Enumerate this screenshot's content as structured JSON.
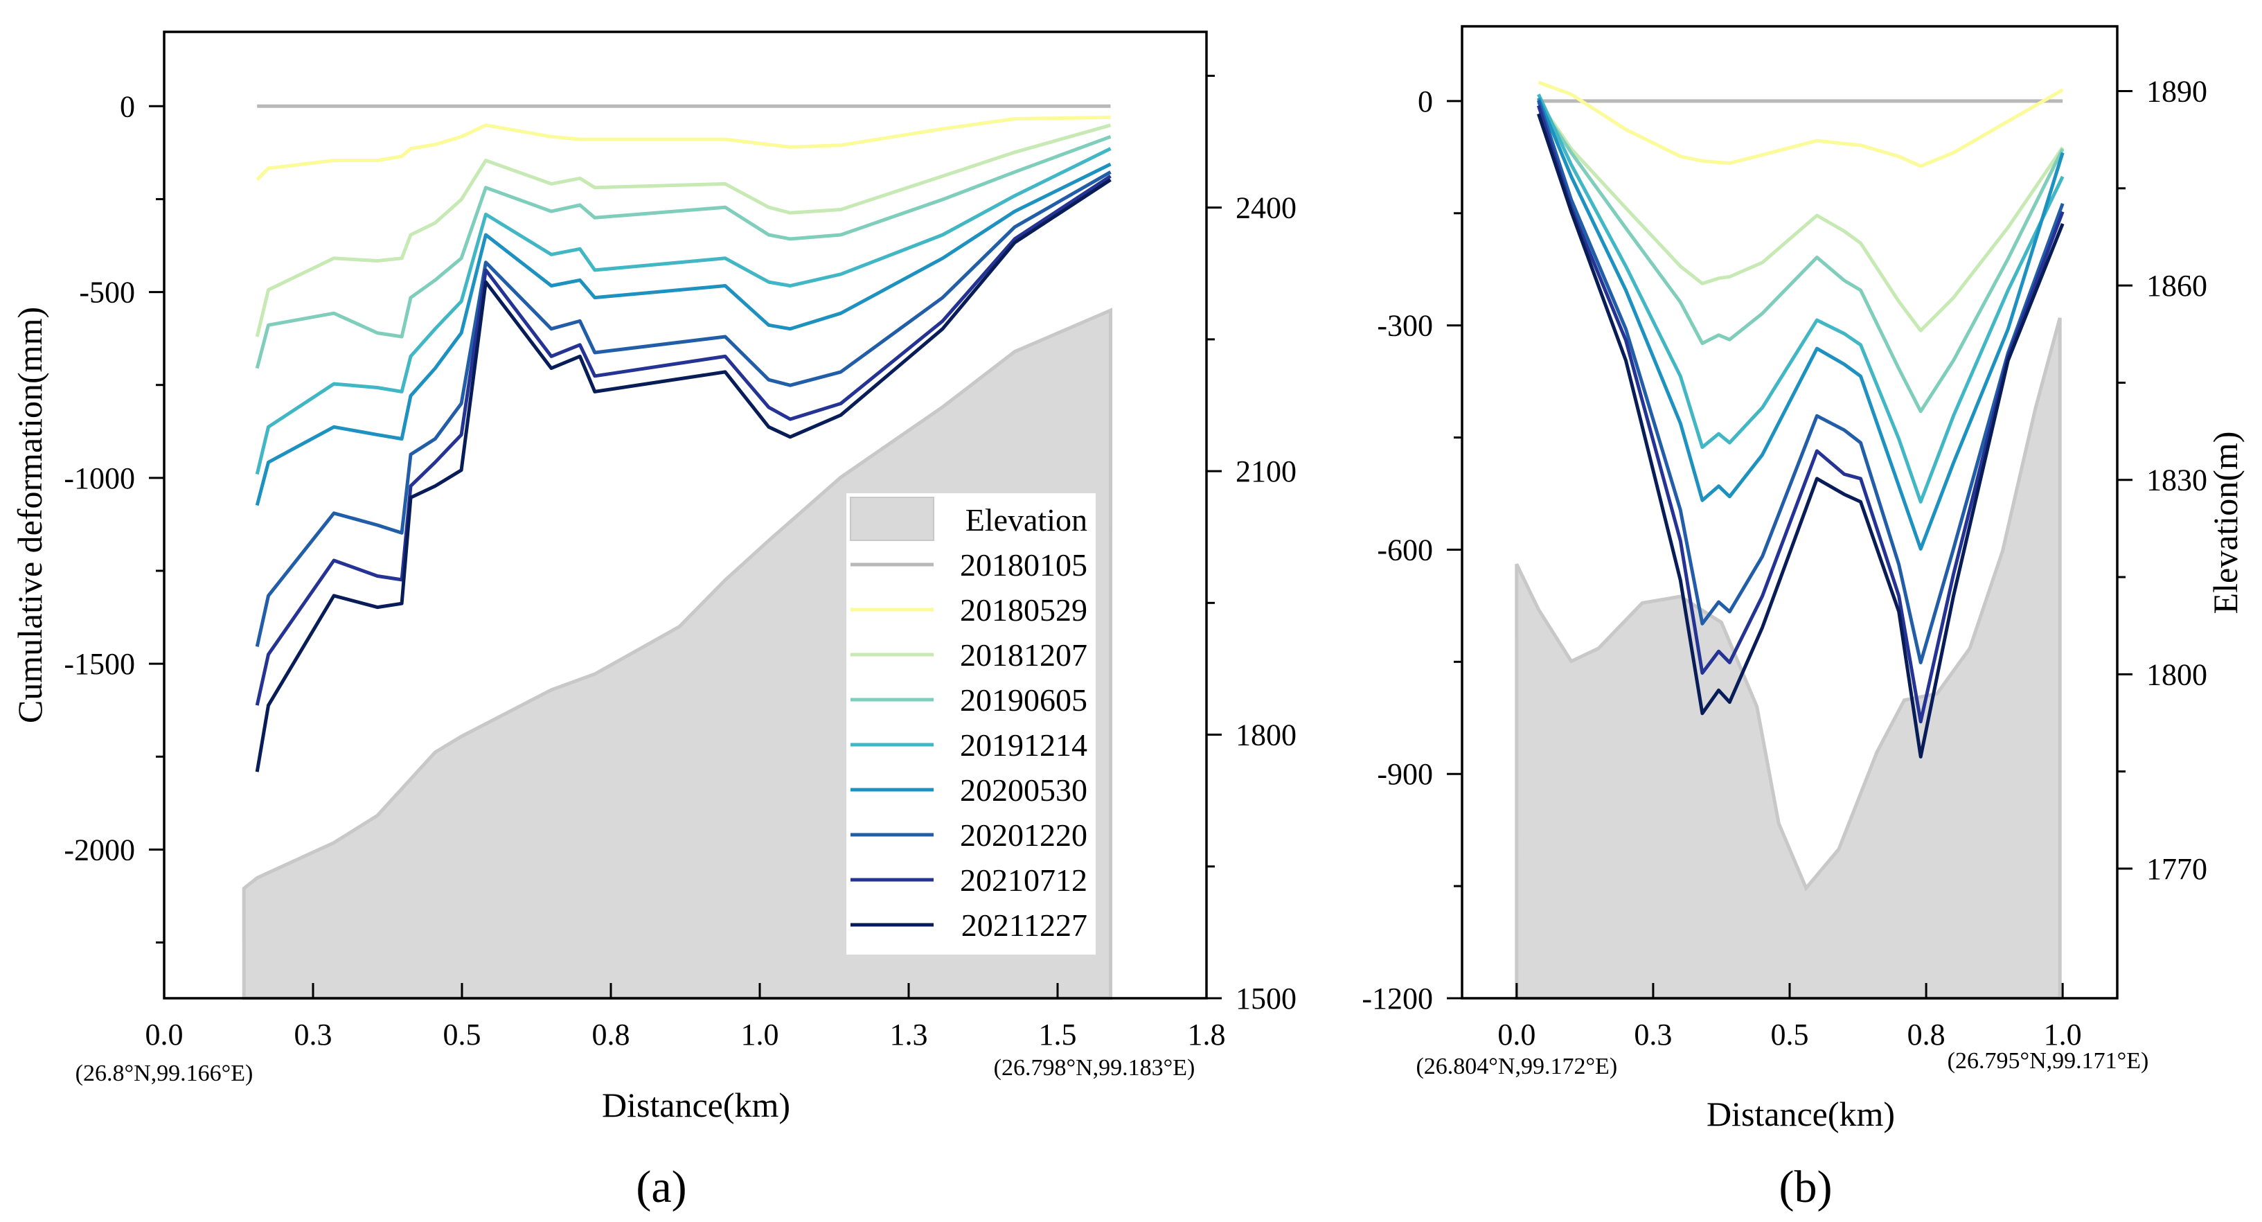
{
  "series_colors": {
    "20180105": "#b8b8b8",
    "20180529": "#fbfb9a",
    "20181207": "#c7e9b4",
    "20190605": "#7fcdbb",
    "20191214": "#41b6c4",
    "20200530": "#1d91c0",
    "20201220": "#225ea8",
    "20210712": "#253494",
    "20211227": "#081d58",
    "Elevation": "#d9d9d9"
  },
  "chart_data": [
    {
      "type": "line",
      "panel_label": "(a)",
      "xlabel": "Distance(km)",
      "ylabel": "Cumulative deformation(mm)",
      "y2label": "",
      "xlim": [
        0,
        1.75
      ],
      "ylim": [
        -2400,
        200
      ],
      "y2lim": [
        1500,
        2600
      ],
      "x_ticks": [
        0,
        0.25,
        0.5,
        0.75,
        1.0,
        1.25,
        1.5,
        1.75
      ],
      "x_tick_labels": [
        "0.0",
        "0.3",
        "0.5",
        "0.8",
        "1.0",
        "1.3",
        "1.5",
        "1.8"
      ],
      "y_ticks": [
        0,
        -500,
        -1000,
        -1500,
        -2000
      ],
      "y_tick_labels": [
        "0",
        "-500",
        "-1000",
        "-1500",
        "-2000"
      ],
      "y2_ticks": [
        2400,
        2100,
        1800,
        1500
      ],
      "y2_tick_labels": [
        "2400",
        "2100",
        "1800",
        "1500"
      ],
      "start_coord": "(26.8°N,99.166°E)",
      "end_coord": "(26.798°N,99.183°E)",
      "legend": {
        "position": "lower-right",
        "entries": [
          "Elevation",
          "20180105",
          "20180529",
          "20181207",
          "20190605",
          "20191214",
          "20200530",
          "20201220",
          "20210712",
          "20211227"
        ]
      },
      "x": [
        0.156,
        0.175,
        0.285,
        0.358,
        0.399,
        0.414,
        0.455,
        0.499,
        0.54,
        0.65,
        0.698,
        0.723,
        0.942,
        1.015,
        1.051,
        1.136,
        1.307,
        1.428,
        1.589
      ],
      "series": [
        {
          "name": "20180105",
          "values": [
            0,
            0,
            0,
            0,
            0,
            0,
            0,
            0,
            0,
            0,
            0,
            0,
            0,
            0,
            0,
            0,
            0,
            0,
            0
          ]
        },
        {
          "name": "20180529",
          "values": [
            -198,
            -167,
            -146,
            -146,
            -135,
            -114,
            -103,
            -82,
            -51,
            -82,
            -89,
            -89,
            -89,
            -103,
            -110,
            -105,
            -61,
            -34,
            -30
          ]
        },
        {
          "name": "20181207",
          "values": [
            -620,
            -494,
            -409,
            -416,
            -409,
            -346,
            -314,
            -251,
            -146,
            -209,
            -194,
            -219,
            -209,
            -272,
            -287,
            -278,
            -188,
            -124,
            -51
          ]
        },
        {
          "name": "20190605",
          "values": [
            -705,
            -589,
            -557,
            -610,
            -620,
            -515,
            -468,
            -409,
            -219,
            -283,
            -266,
            -300,
            -272,
            -346,
            -357,
            -346,
            -251,
            -177,
            -82
          ]
        },
        {
          "name": "20191214",
          "values": [
            -990,
            -863,
            -747,
            -757,
            -768,
            -673,
            -599,
            -525,
            -291,
            -399,
            -384,
            -441,
            -409,
            -473,
            -483,
            -452,
            -346,
            -241,
            -114
          ]
        },
        {
          "name": "20200530",
          "values": [
            -1074,
            -958,
            -863,
            -884,
            -895,
            -779,
            -705,
            -610,
            -346,
            -483,
            -468,
            -515,
            -483,
            -589,
            -599,
            -557,
            -409,
            -283,
            -156
          ]
        },
        {
          "name": "20201220",
          "values": [
            -1454,
            -1317,
            -1095,
            -1127,
            -1148,
            -937,
            -895,
            -800,
            -420,
            -599,
            -578,
            -663,
            -620,
            -736,
            -751,
            -715,
            -515,
            -325,
            -177
          ]
        },
        {
          "name": "20210712",
          "values": [
            -1612,
            -1475,
            -1222,
            -1264,
            -1274,
            -1022,
            -958,
            -884,
            -441,
            -673,
            -642,
            -726,
            -673,
            -810,
            -842,
            -800,
            -578,
            -357,
            -188
          ]
        },
        {
          "name": "20211227",
          "values": [
            -1791,
            -1612,
            -1317,
            -1348,
            -1338,
            -1053,
            -1022,
            -979,
            -473,
            -705,
            -673,
            -768,
            -715,
            -863,
            -890,
            -831,
            -599,
            -367,
            -198
          ]
        }
      ],
      "elevation": {
        "x": [
          0.134,
          0.156,
          0.285,
          0.358,
          0.455,
          0.499,
          0.65,
          0.723,
          0.865,
          0.942,
          1.015,
          1.136,
          1.307,
          1.428,
          1.589
        ],
        "values": [
          1625,
          1637,
          1677,
          1708,
          1780,
          1798,
          1851,
          1869,
          1923,
          1976,
          2021,
          2093,
          2173,
          2236,
          2283
        ]
      }
    },
    {
      "type": "line",
      "panel_label": "(b)",
      "xlabel": "Distance(km)",
      "ylabel": "",
      "y2label": "Elevation(m)",
      "xlim": [
        -0.1,
        1.1
      ],
      "ylim": [
        -1200,
        100
      ],
      "y2lim": [
        1750,
        1900
      ],
      "x_ticks": [
        0,
        0.25,
        0.5,
        0.75,
        1.0
      ],
      "x_tick_labels": [
        "0.0",
        "0.3",
        "0.5",
        "0.8",
        "1.0"
      ],
      "y_ticks": [
        0,
        -300,
        -600,
        -900,
        -1200
      ],
      "y_tick_labels": [
        "0",
        "-300",
        "-600",
        "-900",
        "-1200"
      ],
      "y2_ticks": [
        1890,
        1860,
        1830,
        1800,
        1770
      ],
      "y2_tick_labels": [
        "1890",
        "1860",
        "1830",
        "1800",
        "1770"
      ],
      "start_coord": "(26.804°N,99.172°E)",
      "end_coord": "(26.795°N,99.171°E)",
      "x": [
        0.04,
        0.1,
        0.2,
        0.3,
        0.34,
        0.37,
        0.39,
        0.45,
        0.55,
        0.6,
        0.63,
        0.7,
        0.74,
        0.8,
        0.9,
        1.0
      ],
      "series": [
        {
          "name": "20180105",
          "values": [
            0,
            0,
            0,
            0,
            0,
            0,
            0,
            0,
            0,
            0,
            0,
            0,
            0,
            0,
            0,
            0
          ]
        },
        {
          "name": "20180529",
          "values": [
            25,
            9,
            -38,
            -74,
            -80,
            -82,
            -83,
            -72,
            -53,
            -57,
            -59,
            -74,
            -87,
            -69,
            -27,
            15
          ]
        },
        {
          "name": "20181207",
          "values": [
            0,
            -64,
            -143,
            -221,
            -244,
            -237,
            -235,
            -216,
            -153,
            -174,
            -190,
            -268,
            -307,
            -263,
            -169,
            -62
          ]
        },
        {
          "name": "20190605",
          "values": [
            -2,
            -69,
            -170,
            -269,
            -324,
            -313,
            -319,
            -284,
            -209,
            -240,
            -253,
            -358,
            -415,
            -347,
            -211,
            -64
          ]
        },
        {
          "name": "20191214",
          "values": [
            9,
            -85,
            -221,
            -368,
            -463,
            -445,
            -457,
            -410,
            -293,
            -311,
            -326,
            -452,
            -536,
            -421,
            -253,
            -101
          ]
        },
        {
          "name": "20200530",
          "values": [
            4,
            -101,
            -253,
            -431,
            -534,
            -515,
            -529,
            -473,
            -331,
            -352,
            -368,
            -515,
            -599,
            -484,
            -305,
            -69
          ]
        },
        {
          "name": "20201220",
          "values": [
            1,
            -132,
            -305,
            -547,
            -699,
            -670,
            -683,
            -609,
            -421,
            -440,
            -457,
            -620,
            -751,
            -599,
            -337,
            -137
          ]
        },
        {
          "name": "20210712",
          "values": [
            -6,
            -143,
            -320,
            -588,
            -765,
            -736,
            -751,
            -662,
            -468,
            -499,
            -505,
            -662,
            -830,
            -633,
            -342,
            -148
          ]
        },
        {
          "name": "20211227",
          "values": [
            -17,
            -148,
            -347,
            -641,
            -819,
            -788,
            -804,
            -704,
            -505,
            -526,
            -536,
            -683,
            -877,
            -662,
            -347,
            -164
          ]
        }
      ],
      "elevation": {
        "x": [
          0,
          0.04,
          0.1,
          0.15,
          0.23,
          0.3,
          0.375,
          0.44,
          0.48,
          0.53,
          0.59,
          0.66,
          0.71,
          0.77,
          0.83,
          0.89,
          0.95,
          0.995
        ],
        "values": [
          1817,
          1810,
          1802,
          1804,
          1811,
          1812,
          1808,
          1795,
          1777,
          1767,
          1773,
          1788,
          1796,
          1797,
          1804,
          1819,
          1841,
          1855
        ]
      }
    }
  ]
}
